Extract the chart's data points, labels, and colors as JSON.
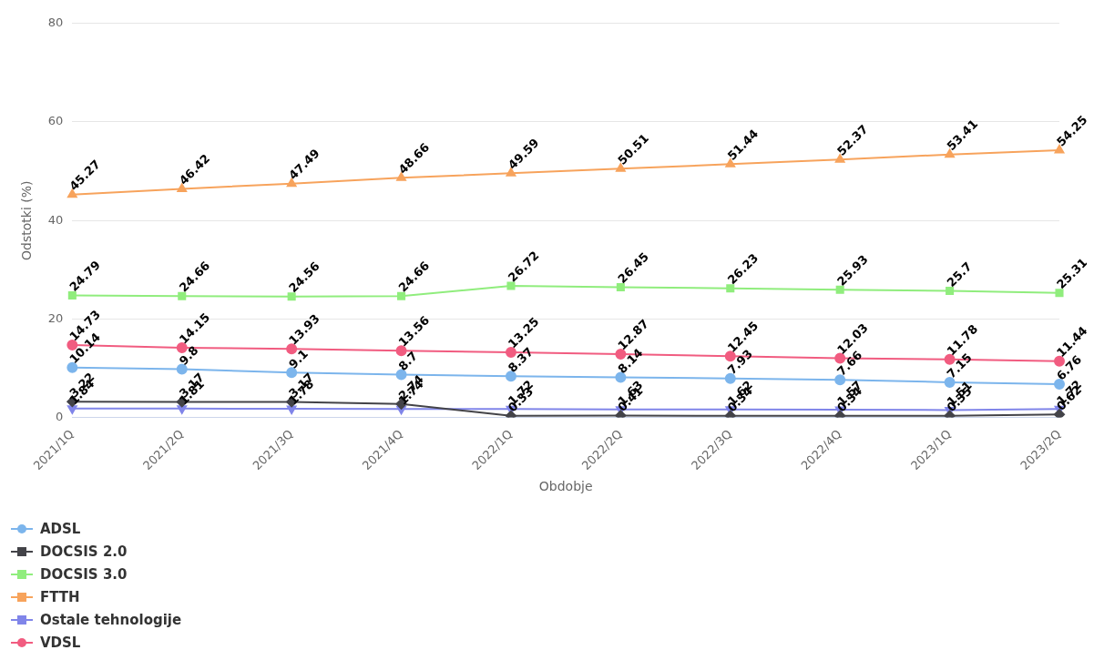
{
  "chart_data": {
    "type": "line",
    "xlabel": "Obdobje",
    "ylabel": "Odstotki (%)",
    "categories": [
      "2021/1Q",
      "2021/2Q",
      "2021/3Q",
      "2021/4Q",
      "2022/1Q",
      "2022/2Q",
      "2022/3Q",
      "2022/4Q",
      "2023/1Q",
      "2023/2Q"
    ],
    "series": [
      {
        "name": "ADSL",
        "color": "#7cb5ec",
        "marker": "circle",
        "values": [
          10.14,
          9.8,
          9.1,
          8.7,
          8.37,
          8.14,
          7.93,
          7.66,
          7.15,
          6.76
        ]
      },
      {
        "name": "DOCSIS 2.0",
        "color": "#434348",
        "marker": "diamond",
        "values": [
          3.22,
          3.17,
          3.17,
          2.74,
          0.33,
          0.41,
          0.34,
          0.34,
          0.35,
          0.62
        ]
      },
      {
        "name": "DOCSIS 3.0",
        "color": "#90ed7d",
        "marker": "square",
        "values": [
          24.79,
          24.66,
          24.56,
          24.66,
          26.72,
          26.45,
          26.23,
          25.93,
          25.7,
          25.31
        ]
      },
      {
        "name": "FTTH",
        "color": "#f7a35c",
        "marker": "triangle",
        "values": [
          45.27,
          46.42,
          47.49,
          48.66,
          49.59,
          50.51,
          51.44,
          52.37,
          53.41,
          54.25
        ]
      },
      {
        "name": "Ostale tehnologije",
        "color": "#8085e9",
        "marker": "triangle-down",
        "values": [
          1.84,
          1.81,
          1.78,
          1.74,
          1.72,
          1.63,
          1.62,
          1.57,
          1.51,
          1.72
        ]
      },
      {
        "name": "VDSL",
        "color": "#f15c80",
        "marker": "circle",
        "values": [
          14.73,
          14.15,
          13.93,
          13.56,
          13.25,
          12.87,
          12.45,
          12.03,
          11.78,
          11.44
        ]
      }
    ],
    "ylim": [
      0,
      80
    ],
    "yticks": [
      0,
      20,
      40,
      60,
      80
    ],
    "grid": "y",
    "legend": "bottom left",
    "data_labels": true,
    "line_style": "solid"
  }
}
